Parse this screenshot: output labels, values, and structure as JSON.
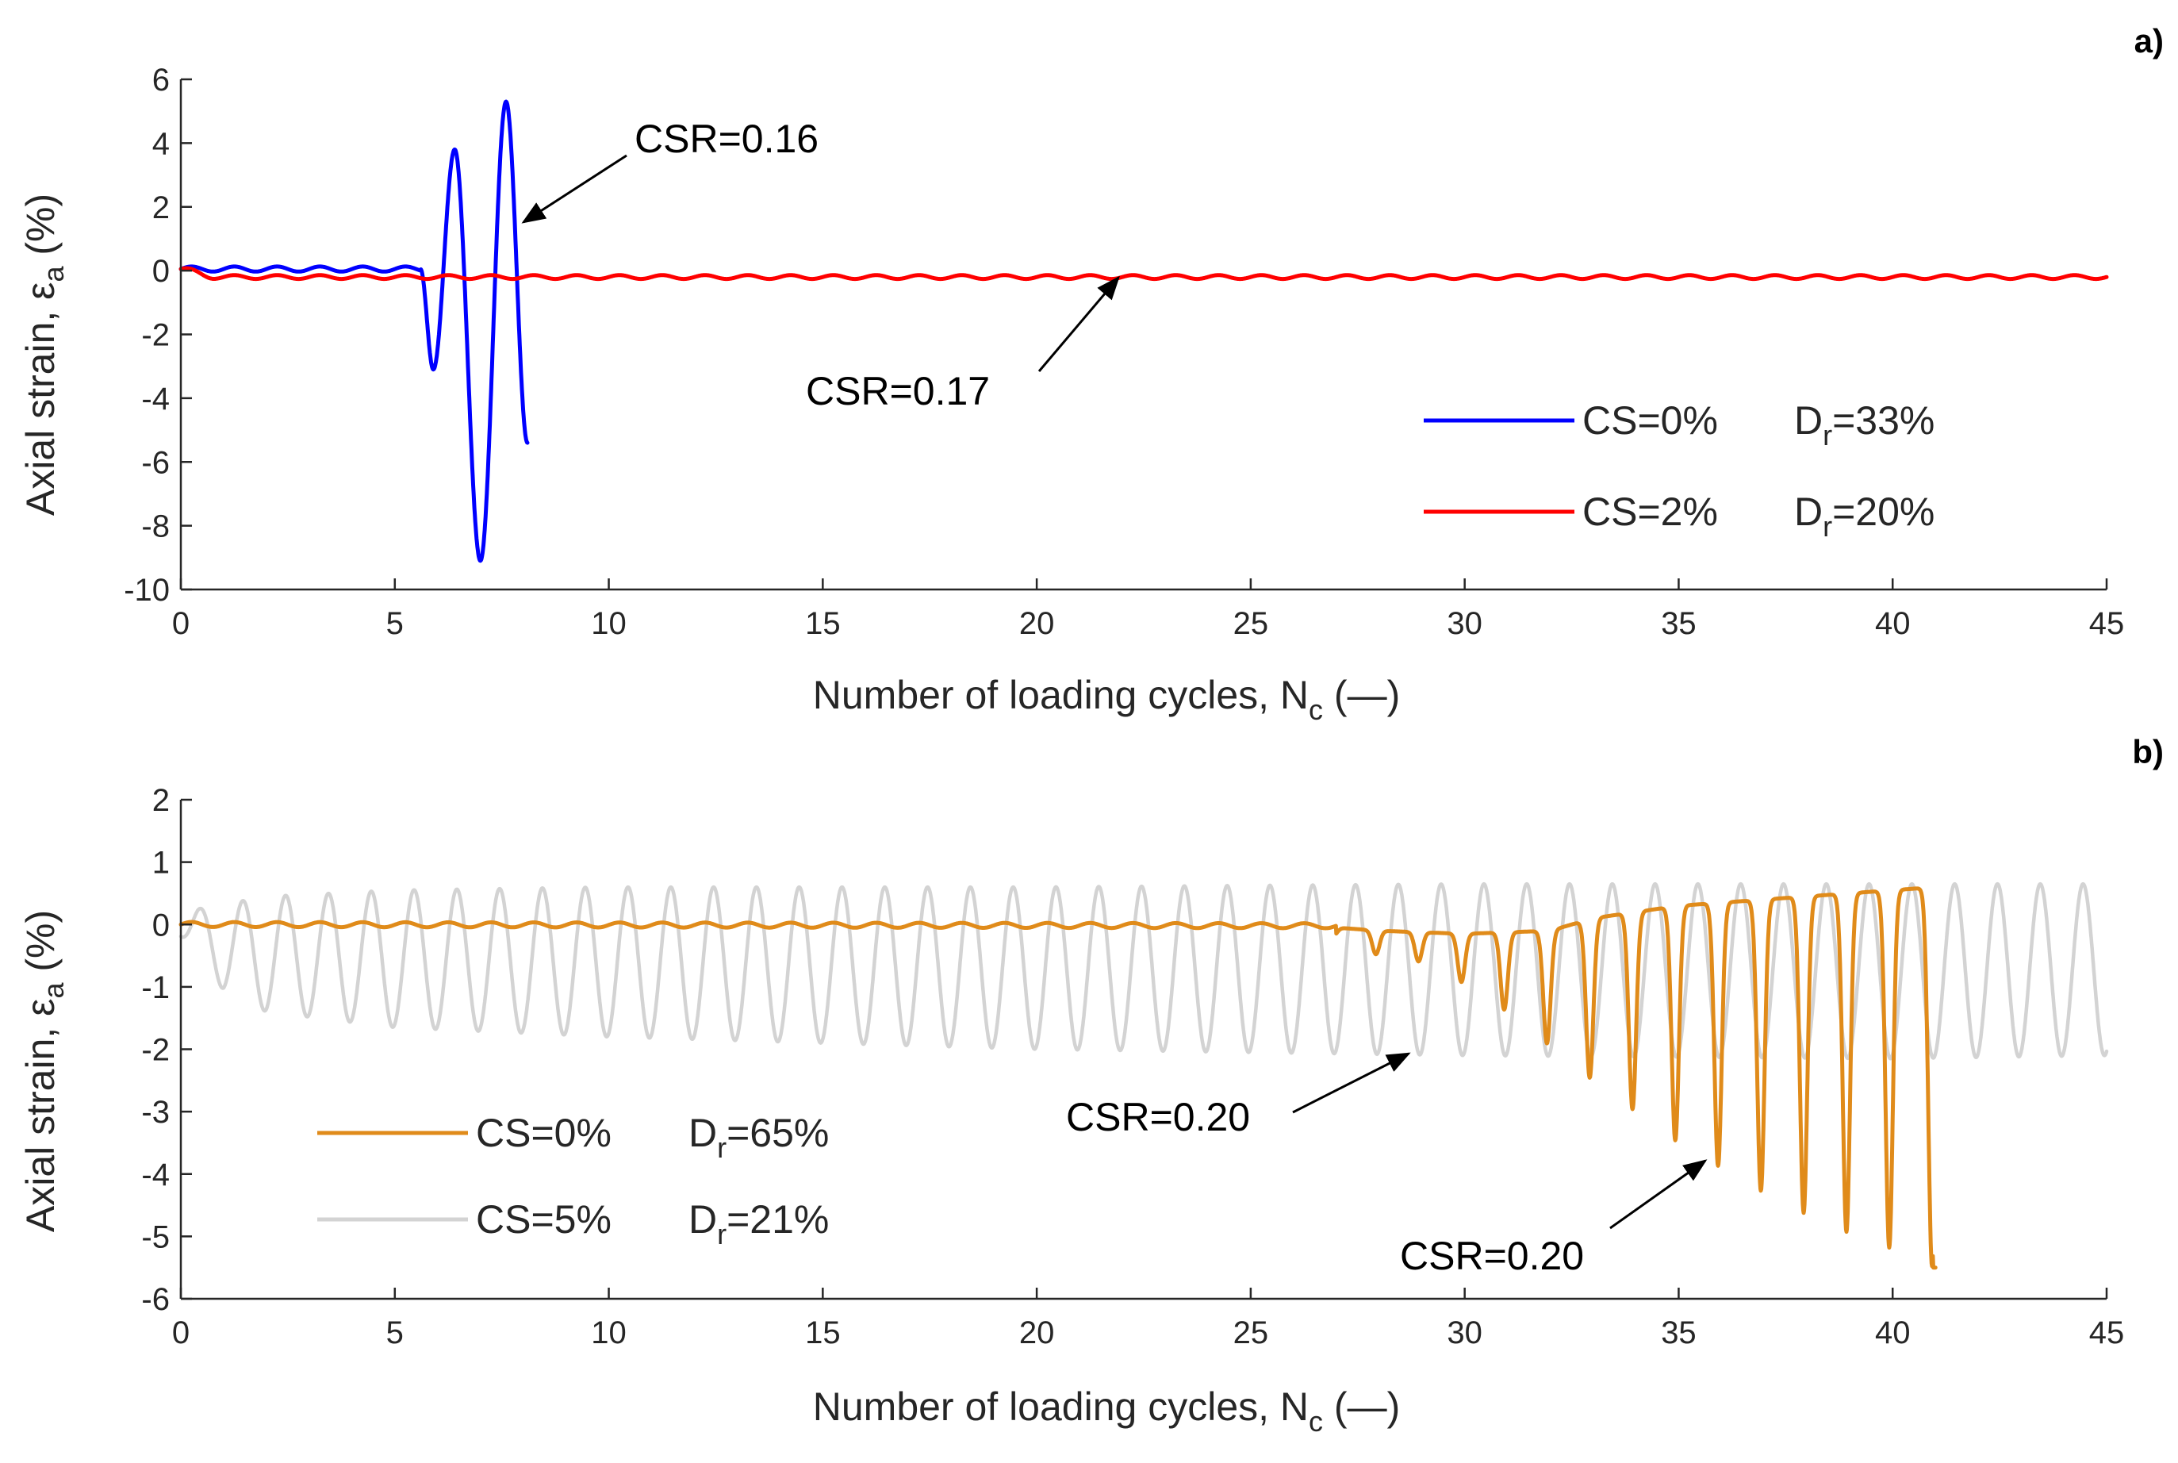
{
  "chart_data": [
    {
      "type": "line",
      "panel_label": "a)",
      "xlabel": {
        "main": "Number of loading cycles, N",
        "sub": "c",
        "suffix": " (—)"
      },
      "ylabel": {
        "main": "Axial strain, ε",
        "sub": "a",
        "suffix": " (%)"
      },
      "xlim": [
        0,
        45
      ],
      "ylim": [
        -10,
        6
      ],
      "xticks": [
        0,
        5,
        10,
        15,
        20,
        25,
        30,
        35,
        40,
        45
      ],
      "yticks": [
        -10,
        -8,
        -6,
        -4,
        -2,
        0,
        2,
        4,
        6
      ],
      "grid": false,
      "legend_position": "center-right",
      "series": [
        {
          "name": "CS=0%   Dr=33%",
          "legend_main": "CS=0%",
          "legend_dr": "D",
          "legend_dr_sub": "r",
          "legend_dr_val": "=33%",
          "color": "#0000ff",
          "model": "blue_a",
          "key_points": [
            [
              0,
              0.05
            ],
            [
              1,
              0.05
            ],
            [
              2,
              0.05
            ],
            [
              3,
              0.05
            ],
            [
              4,
              0.05
            ],
            [
              5,
              0.05
            ],
            [
              5.9,
              -3.1
            ],
            [
              6.4,
              3.8
            ],
            [
              7.0,
              -9.1
            ],
            [
              7.6,
              5.3
            ],
            [
              8.1,
              -5.4
            ]
          ]
        },
        {
          "name": "CS=2%   Dr=20%",
          "legend_main": "CS=2%",
          "legend_dr": "D",
          "legend_dr_sub": "r",
          "legend_dr_val": "=20%",
          "color": "#ff0000",
          "model": "red_a",
          "key_points": [
            [
              0,
              0.05
            ],
            [
              1,
              -0.15
            ],
            [
              10,
              -0.15
            ],
            [
              20,
              -0.15
            ],
            [
              30,
              -0.15
            ],
            [
              40,
              -0.15
            ],
            [
              45,
              -0.15
            ]
          ]
        }
      ],
      "annotations": [
        {
          "text": "CSR=0.16",
          "points_to": [
            7.9,
            1.5
          ]
        },
        {
          "text": "CSR=0.17",
          "points_to": [
            21.9,
            -0.2
          ]
        }
      ]
    },
    {
      "type": "line",
      "panel_label": "b)",
      "xlabel": {
        "main": "Number of loading cycles, N",
        "sub": "c",
        "suffix": " (—)"
      },
      "ylabel": {
        "main": "Axial strain, ε",
        "sub": "a",
        "suffix": " (%)"
      },
      "xlim": [
        0,
        45
      ],
      "ylim": [
        -6,
        2
      ],
      "xticks": [
        0,
        5,
        10,
        15,
        20,
        25,
        30,
        35,
        40,
        45
      ],
      "yticks": [
        -6,
        -5,
        -4,
        -3,
        -2,
        -1,
        0,
        1,
        2
      ],
      "grid": false,
      "legend_position": "lower-left",
      "series": [
        {
          "name": "CS=0%   Dr=65%",
          "legend_main": "CS=0%",
          "legend_dr": "D",
          "legend_dr_sub": "r",
          "legend_dr_val": "=65%",
          "color": "#e08b1a",
          "model": "orange_b",
          "key_points": [
            [
              0,
              0.0
            ],
            [
              10,
              0.0
            ],
            [
              20,
              -0.05
            ],
            [
              25,
              -0.1
            ],
            [
              28,
              -0.6
            ],
            [
              30,
              -0.95
            ],
            [
              31,
              -1.4
            ],
            [
              32,
              -1.95
            ],
            [
              33,
              -2.5
            ],
            [
              34,
              -3.0
            ],
            [
              35,
              -3.5
            ],
            [
              36,
              -3.9
            ],
            [
              37,
              -4.3
            ],
            [
              38,
              -4.65
            ],
            [
              39,
              -4.95
            ],
            [
              40,
              -5.2
            ],
            [
              40.5,
              0.6
            ],
            [
              41,
              -5.5
            ]
          ]
        },
        {
          "name": "CS=5%   Dr=21%",
          "legend_main": "CS=5%",
          "legend_dr": "D",
          "legend_dr_sub": "r",
          "legend_dr_val": "=21%",
          "color": "#d3d3d3",
          "model": "gray_b",
          "key_points": [
            [
              0,
              0.0
            ],
            [
              0.4,
              0.25
            ],
            [
              1,
              -1.05
            ],
            [
              2,
              -1.4
            ],
            [
              5,
              -1.65
            ],
            [
              10,
              -1.8
            ],
            [
              20,
              -2.0
            ],
            [
              30,
              -2.1
            ],
            [
              40,
              -2.15
            ],
            [
              45,
              -2.0
            ],
            [
              44.5,
              0.65
            ]
          ]
        }
      ],
      "annotations": [
        {
          "text": "CSR=0.20",
          "points_to": [
            28.9,
            -2.15
          ]
        },
        {
          "text": "CSR=0.20",
          "points_to": [
            35.9,
            -3.75
          ]
        }
      ]
    }
  ]
}
